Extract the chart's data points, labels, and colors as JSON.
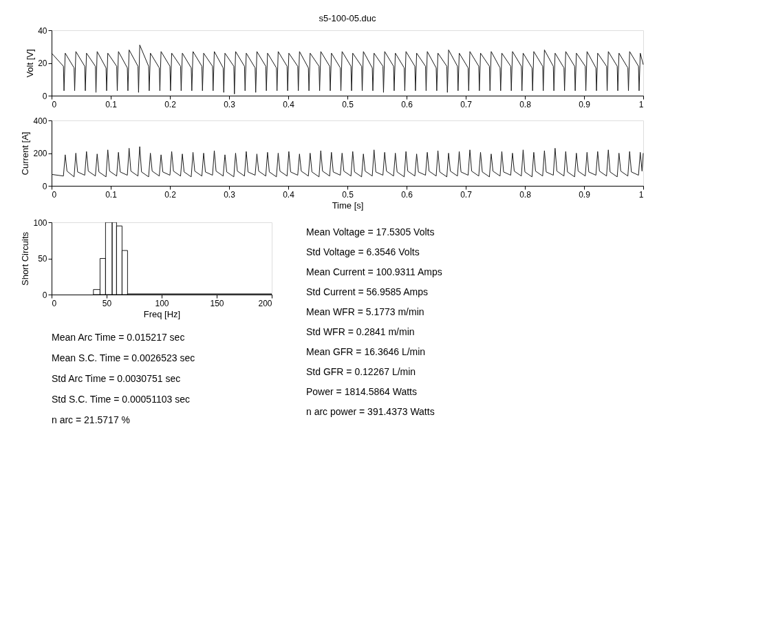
{
  "chart_data": [
    {
      "type": "line",
      "title": "s5-100-05.duc",
      "ylabel": "Volt [V]",
      "xlim": [
        0,
        1
      ],
      "xticks": [
        0,
        0.1,
        0.2,
        0.3,
        0.4,
        0.5,
        0.6,
        0.7,
        0.8,
        0.9,
        1
      ],
      "ylim": [
        0,
        40
      ],
      "yticks": [
        0,
        20,
        40
      ],
      "grid": false,
      "marker": "none",
      "line_style": "solid",
      "series": [
        {
          "color": "#1a1a1a",
          "x": [
            0,
            0.02,
            0.021,
            0.023,
            0.038,
            0.039,
            0.041,
            0.056,
            0.057,
            0.059,
            0.074,
            0.075,
            0.077,
            0.092,
            0.093,
            0.095,
            0.11,
            0.111,
            0.113,
            0.128,
            0.129,
            0.131,
            0.146,
            0.147,
            0.149,
            0.164,
            0.165,
            0.167,
            0.182,
            0.183,
            0.185,
            0.2,
            0.201,
            0.203,
            0.218,
            0.219,
            0.221,
            0.236,
            0.237,
            0.239,
            0.254,
            0.255,
            0.257,
            0.272,
            0.273,
            0.275,
            0.29,
            0.291,
            0.293,
            0.308,
            0.309,
            0.311,
            0.326,
            0.327,
            0.329,
            0.344,
            0.345,
            0.347,
            0.362,
            0.363,
            0.365,
            0.38,
            0.381,
            0.383,
            0.398,
            0.399,
            0.401,
            0.416,
            0.417,
            0.419,
            0.434,
            0.435,
            0.437,
            0.452,
            0.453,
            0.455,
            0.47,
            0.471,
            0.473,
            0.488,
            0.489,
            0.491,
            0.506,
            0.507,
            0.509,
            0.524,
            0.525,
            0.527,
            0.542,
            0.543,
            0.545,
            0.56,
            0.561,
            0.563,
            0.578,
            0.579,
            0.581,
            0.596,
            0.597,
            0.599,
            0.614,
            0.615,
            0.617,
            0.632,
            0.633,
            0.635,
            0.65,
            0.651,
            0.653,
            0.668,
            0.669,
            0.671,
            0.686,
            0.687,
            0.689,
            0.704,
            0.705,
            0.707,
            0.722,
            0.723,
            0.725,
            0.74,
            0.741,
            0.743,
            0.758,
            0.759,
            0.761,
            0.776,
            0.777,
            0.779,
            0.794,
            0.795,
            0.797,
            0.812,
            0.813,
            0.815,
            0.83,
            0.831,
            0.833,
            0.848,
            0.849,
            0.851,
            0.866,
            0.867,
            0.869,
            0.884,
            0.885,
            0.887,
            0.902,
            0.903,
            0.905,
            0.92,
            0.921,
            0.923,
            0.938,
            0.939,
            0.941,
            0.956,
            0.957,
            0.959,
            0.974,
            0.975,
            0.977,
            0.992,
            0.993,
            0.995,
            1
          ],
          "values": [
            26,
            18,
            3,
            26,
            17,
            3,
            27,
            18,
            3,
            26,
            18,
            2,
            27,
            17,
            3,
            26,
            18,
            3,
            27,
            17,
            3,
            28,
            18,
            2,
            31,
            18,
            3,
            26,
            17,
            3,
            27,
            18,
            3,
            26,
            18,
            3,
            26,
            17,
            3,
            27,
            18,
            3,
            26,
            18,
            3,
            27,
            17,
            2,
            26,
            18,
            1,
            27,
            18,
            3,
            26,
            17,
            2,
            27,
            18,
            3,
            26,
            17,
            3,
            27,
            18,
            3,
            26,
            18,
            3,
            27,
            17,
            3,
            26,
            18,
            3,
            27,
            18,
            3,
            26,
            17,
            3,
            27,
            18,
            3,
            26,
            18,
            3,
            27,
            17,
            3,
            26,
            18,
            2,
            27,
            18,
            3,
            26,
            17,
            3,
            27,
            18,
            3,
            26,
            18,
            3,
            27,
            17,
            3,
            26,
            18,
            2,
            28,
            18,
            3,
            26,
            17,
            3,
            27,
            18,
            3,
            26,
            18,
            3,
            27,
            17,
            3,
            26,
            18,
            3,
            27,
            18,
            3,
            26,
            17,
            3,
            27,
            18,
            3,
            28,
            18,
            3,
            26,
            17,
            3,
            27,
            18,
            3,
            26,
            18,
            3,
            27,
            17,
            3,
            26,
            18,
            3,
            27,
            18,
            3,
            26,
            17,
            3,
            27,
            18,
            3,
            26,
            19
          ]
        }
      ]
    },
    {
      "type": "line",
      "xlabel": "Time [s]",
      "ylabel": "Current [A]",
      "xlim": [
        0,
        1
      ],
      "xticks": [
        0,
        0.1,
        0.2,
        0.3,
        0.4,
        0.5,
        0.6,
        0.7,
        0.8,
        0.9,
        1
      ],
      "ylim": [
        0,
        400
      ],
      "yticks": [
        0,
        200,
        400
      ],
      "grid": false,
      "marker": "none",
      "line_style": "solid",
      "series": [
        {
          "color": "#1a1a1a",
          "x": [
            0,
            0.02,
            0.023,
            0.026,
            0.038,
            0.041,
            0.044,
            0.056,
            0.059,
            0.062,
            0.074,
            0.077,
            0.08,
            0.092,
            0.095,
            0.098,
            0.11,
            0.113,
            0.116,
            0.128,
            0.131,
            0.134,
            0.146,
            0.149,
            0.152,
            0.164,
            0.167,
            0.17,
            0.182,
            0.185,
            0.188,
            0.2,
            0.203,
            0.206,
            0.218,
            0.221,
            0.224,
            0.236,
            0.239,
            0.242,
            0.254,
            0.257,
            0.26,
            0.272,
            0.275,
            0.278,
            0.29,
            0.293,
            0.296,
            0.308,
            0.311,
            0.314,
            0.326,
            0.329,
            0.332,
            0.344,
            0.347,
            0.35,
            0.362,
            0.365,
            0.368,
            0.38,
            0.383,
            0.386,
            0.398,
            0.401,
            0.404,
            0.416,
            0.419,
            0.422,
            0.434,
            0.437,
            0.44,
            0.452,
            0.455,
            0.458,
            0.47,
            0.473,
            0.476,
            0.488,
            0.491,
            0.494,
            0.506,
            0.509,
            0.512,
            0.524,
            0.527,
            0.53,
            0.542,
            0.545,
            0.548,
            0.56,
            0.563,
            0.566,
            0.578,
            0.581,
            0.584,
            0.596,
            0.599,
            0.602,
            0.614,
            0.617,
            0.62,
            0.632,
            0.635,
            0.638,
            0.65,
            0.653,
            0.656,
            0.668,
            0.671,
            0.674,
            0.686,
            0.689,
            0.692,
            0.704,
            0.707,
            0.71,
            0.722,
            0.725,
            0.728,
            0.74,
            0.743,
            0.746,
            0.758,
            0.761,
            0.764,
            0.776,
            0.779,
            0.782,
            0.794,
            0.797,
            0.8,
            0.812,
            0.815,
            0.818,
            0.83,
            0.833,
            0.836,
            0.848,
            0.851,
            0.854,
            0.866,
            0.869,
            0.872,
            0.884,
            0.887,
            0.89,
            0.902,
            0.905,
            0.908,
            0.92,
            0.923,
            0.926,
            0.938,
            0.941,
            0.944,
            0.956,
            0.959,
            0.962,
            0.974,
            0.977,
            0.98,
            0.992,
            0.995,
            0.998,
            1
          ],
          "values": [
            70,
            60,
            190,
            90,
            55,
            200,
            85,
            65,
            210,
            90,
            60,
            195,
            85,
            55,
            220,
            90,
            60,
            205,
            85,
            65,
            230,
            90,
            60,
            240,
            85,
            55,
            200,
            90,
            60,
            190,
            85,
            65,
            210,
            90,
            60,
            195,
            85,
            55,
            205,
            90,
            60,
            200,
            85,
            65,
            215,
            90,
            60,
            190,
            85,
            55,
            200,
            90,
            60,
            210,
            85,
            65,
            195,
            90,
            60,
            205,
            85,
            55,
            200,
            90,
            60,
            210,
            85,
            65,
            195,
            90,
            60,
            200,
            85,
            55,
            215,
            90,
            60,
            205,
            85,
            65,
            200,
            90,
            60,
            210,
            85,
            55,
            195,
            90,
            60,
            220,
            85,
            65,
            205,
            90,
            60,
            200,
            85,
            55,
            210,
            90,
            60,
            195,
            85,
            65,
            205,
            90,
            60,
            215,
            85,
            55,
            200,
            90,
            60,
            210,
            85,
            65,
            220,
            90,
            60,
            205,
            85,
            55,
            195,
            90,
            60,
            210,
            85,
            65,
            200,
            90,
            60,
            220,
            85,
            55,
            205,
            90,
            60,
            215,
            85,
            65,
            230,
            90,
            60,
            210,
            85,
            55,
            200,
            90,
            60,
            205,
            85,
            65,
            210,
            90,
            60,
            220,
            85,
            55,
            200,
            90,
            60,
            210,
            85,
            65,
            205,
            90,
            200
          ]
        }
      ]
    },
    {
      "type": "histogram",
      "xlabel": "Freq [Hz]",
      "ylabel": "Short Circuits",
      "xlim": [
        0,
        200
      ],
      "xticks": [
        0,
        50,
        100,
        150,
        200
      ],
      "ylim": [
        0,
        100
      ],
      "yticks": [
        0,
        50,
        100
      ],
      "grid": false,
      "color": "#1a1a1a",
      "bins": [
        38,
        44,
        49,
        55,
        59,
        64,
        69,
        200
      ],
      "values": [
        7,
        50,
        100,
        100,
        95,
        61,
        1
      ]
    },
    {
      "type": "other",
      "annotations": [
        "Mean Arc Time = 0.015217 sec",
        "Mean S.C. Time = 0.0026523 sec",
        "Std Arc Time = 0.0030751 sec",
        "Std S.C. Time = 0.00051103 sec",
        "n arc = 21.5717 %"
      ]
    },
    {
      "type": "other",
      "annotations": [
        "Mean Voltage = 17.5305 Volts",
        "Std Voltage = 6.3546 Volts",
        "Mean Current = 100.9311 Amps",
        "Std Current = 56.9585 Amps",
        "Mean WFR = 5.1773 m/min",
        "Std WFR = 0.2841 m/min",
        "Mean GFR = 16.3646 L/min",
        "Std GFR = 0.12267 L/min",
        "Power = 1814.5864 Watts",
        "n arc power = 391.4373 Watts"
      ]
    }
  ]
}
